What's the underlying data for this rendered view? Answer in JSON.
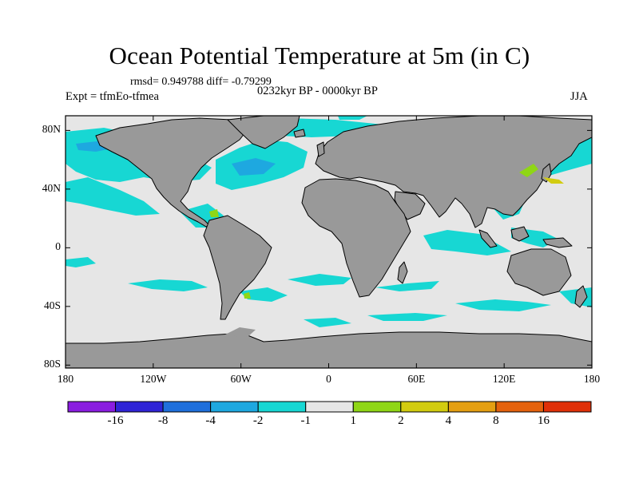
{
  "title": "Ocean Potential Temperature at 5m (in C)",
  "stats": "rmsd= 0.949788 diff= -0.79299",
  "period": "0232kyr BP - 0000kyr BP",
  "experiment": "Expt = tfmEo-tfmea",
  "season": "JJA",
  "axes": {
    "y_ticks": [
      {
        "label": "80N",
        "lat": 80
      },
      {
        "label": "40N",
        "lat": 40
      },
      {
        "label": "0",
        "lat": 0
      },
      {
        "label": "40S",
        "lat": -40
      },
      {
        "label": "80S",
        "lat": -80
      }
    ],
    "x_ticks": [
      {
        "label": "180",
        "lon": -180
      },
      {
        "label": "120W",
        "lon": -120
      },
      {
        "label": "60W",
        "lon": -60
      },
      {
        "label": "0",
        "lon": 0
      },
      {
        "label": "60E",
        "lon": 60
      },
      {
        "label": "120E",
        "lon": 120
      },
      {
        "label": "180",
        "lon": 180
      }
    ]
  },
  "colorbar": {
    "colors": [
      "#8a1de0",
      "#2f24d6",
      "#1f6fdc",
      "#1ea8e0",
      "#17d7d3",
      "#e6e6e6",
      "#8fd616",
      "#d2cc10",
      "#e49f12",
      "#e4620d",
      "#e03008"
    ],
    "labels": [
      "-16",
      "-8",
      "-4",
      "-2",
      "-1",
      "1",
      "2",
      "4",
      "8",
      "16"
    ]
  },
  "colors": {
    "land": "#999999",
    "ocean": "#e6e6e6",
    "cold": "#17d7d3",
    "cooler": "#1ea8e0",
    "warm": "#8fd616",
    "warmer": "#d2cc10"
  }
}
